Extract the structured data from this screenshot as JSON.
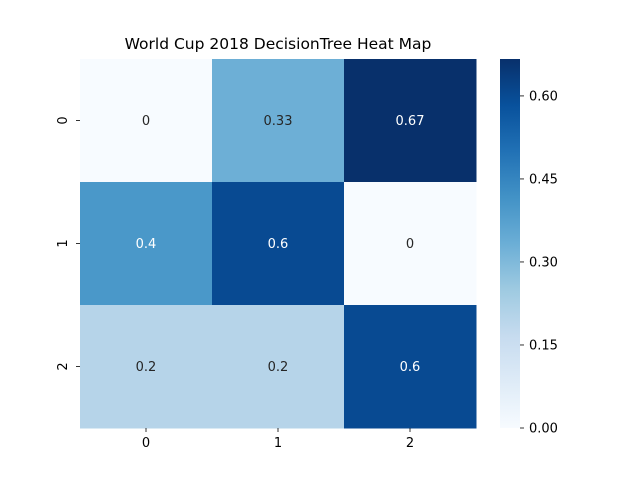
{
  "chart_data": {
    "type": "heatmap",
    "title": "World Cup 2018 DecisionTree Heat Map",
    "xlabel": "",
    "ylabel": "",
    "x_categories": [
      "0",
      "1",
      "2"
    ],
    "y_categories": [
      "0",
      "1",
      "2"
    ],
    "values": [
      [
        0,
        0.33,
        0.67
      ],
      [
        0.4,
        0.6,
        0
      ],
      [
        0.2,
        0.2,
        0.6
      ]
    ],
    "annotations": [
      [
        "0",
        "0.33",
        "0.67"
      ],
      [
        "0.4",
        "0.6",
        "0"
      ],
      [
        "0.2",
        "0.2",
        "0.6"
      ]
    ],
    "colormap": "Blues",
    "color_range": [
      0,
      0.6667
    ],
    "colorbar_ticks": [
      "0.00",
      "0.15",
      "0.30",
      "0.45",
      "0.60"
    ],
    "colorbar_tick_values": [
      0,
      0.15,
      0.3,
      0.45,
      0.6
    ]
  }
}
